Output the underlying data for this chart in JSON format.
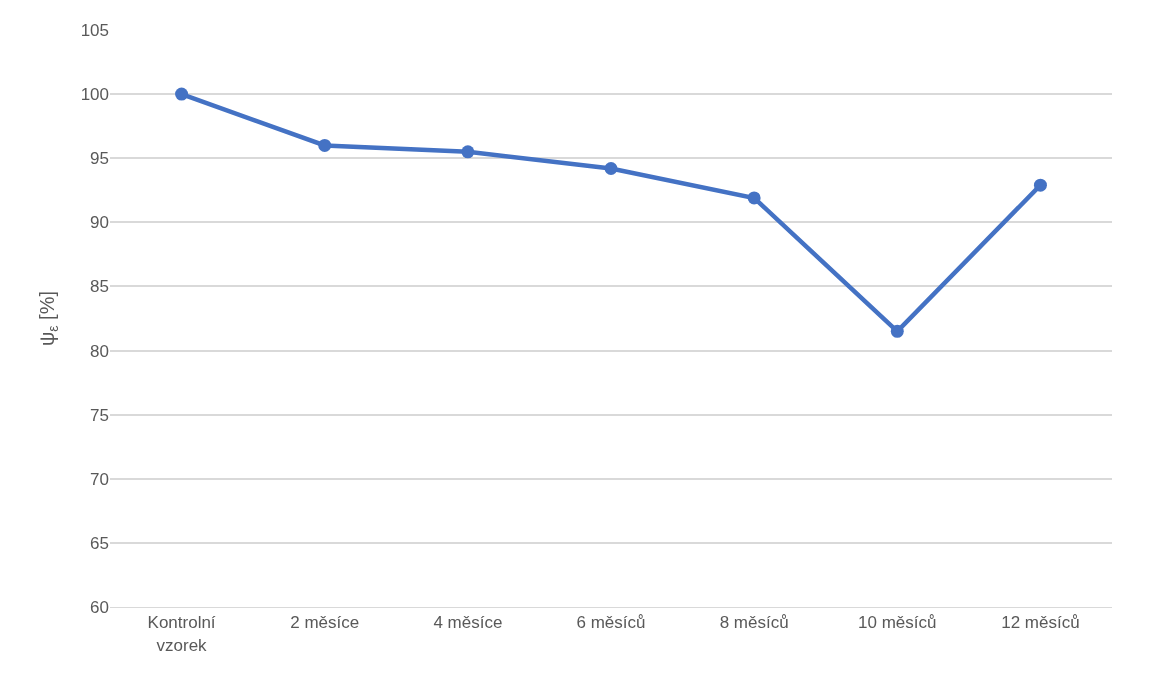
{
  "chart_data": {
    "type": "line",
    "ylabel": "ψ$_{ε}$ [%]",
    "categories": [
      "Kontrolní vzorek",
      "2 měsíce",
      "4 měsíce",
      "6 měsíců",
      "8 měsíců",
      "10 měsíců",
      "12 měsíců"
    ],
    "series": [
      {
        "color": "#4472c4",
        "values": [
          100,
          96.0,
          95.5,
          94.2,
          91.9,
          81.5,
          92.9
        ]
      }
    ],
    "ylim": [
      60,
      105
    ],
    "yticks": [
      60,
      65,
      70,
      75,
      80,
      85,
      90,
      95,
      100,
      105
    ],
    "grid": "y",
    "marker": "circle",
    "line_style": "solid"
  }
}
